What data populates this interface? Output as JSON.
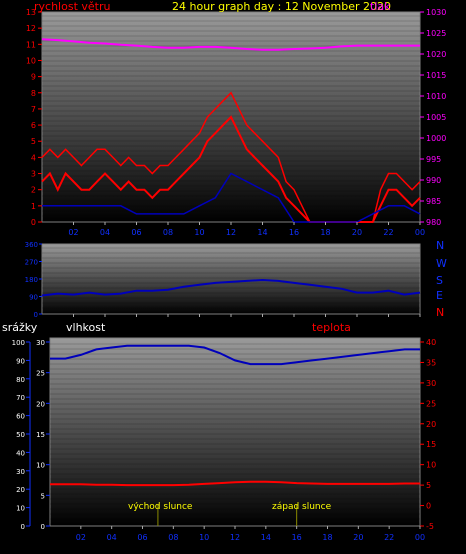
{
  "colors": {
    "background": "#000000",
    "frame": "#7f7f7f",
    "wind": "#ff0000",
    "direction": "#0000bb",
    "pressure": "#ff00ff",
    "humidity": "#0000bb",
    "temperature": "#ff0000",
    "title": "#ffff00",
    "sun_marker": "#8a8a00",
    "axis_blue": "#1030ff"
  },
  "header": {
    "wind_label": "rychlost větru",
    "title": "24 hour graph day : 12 November 2020",
    "pressure_label": "tlak"
  },
  "middle": {
    "compass": [
      "N",
      "W",
      "S",
      "E",
      "N"
    ]
  },
  "bottom_header": {
    "rain_label": "srážky",
    "humidity_label": "vlhkost",
    "temp_label": "teplota"
  },
  "annotations": {
    "sunrise": "východ slunce",
    "sunset": "západ slunce"
  },
  "chart_data": [
    {
      "type": "line",
      "name": "wind-and-pressure",
      "x_ticks": [
        "02",
        "04",
        "06",
        "08",
        "10",
        "12",
        "14",
        "16",
        "18",
        "20",
        "22",
        "00"
      ],
      "y_left_ticks": [
        "0",
        "1",
        "2",
        "3",
        "4",
        "5",
        "6",
        "7",
        "8",
        "9",
        "10",
        "11",
        "12",
        "13"
      ],
      "y_right_ticks": [
        "980",
        "985",
        "990",
        "995",
        "1000",
        "1005",
        "1010",
        "1015",
        "1020",
        "1025",
        "1030"
      ],
      "ylim_left": [
        0,
        13
      ],
      "ylim_right": [
        980,
        1030
      ],
      "xlim": [
        0,
        24
      ],
      "pressure": {
        "x": [
          0,
          1,
          2,
          3,
          4,
          5,
          6,
          7,
          8,
          9,
          10,
          11,
          12,
          13,
          14,
          15,
          16,
          17,
          18,
          19,
          20,
          21,
          22,
          23,
          24
        ],
        "y": [
          1023.5,
          1023.3,
          1023,
          1022.7,
          1022.5,
          1022.2,
          1022,
          1021.7,
          1021.5,
          1021.5,
          1021.7,
          1021.7,
          1021.5,
          1021.2,
          1021,
          1021,
          1021.2,
          1021.3,
          1021.5,
          1021.8,
          1022,
          1022,
          1022,
          1022,
          1022
        ]
      },
      "wind_speed": {
        "x": [
          0,
          0.5,
          1,
          1.5,
          2,
          2.5,
          3,
          3.5,
          4,
          4.5,
          5,
          5.5,
          6,
          6.5,
          7,
          7.5,
          8,
          8.5,
          9,
          9.5,
          10,
          10.5,
          11,
          11.5,
          12,
          12.5,
          13,
          13.5,
          14,
          14.5,
          15,
          15.5,
          16,
          16.5,
          17,
          17.5,
          18,
          18.5,
          19,
          19.5,
          20,
          20.5,
          21,
          21.5,
          22,
          22.5,
          23,
          23.5,
          24
        ],
        "y": [
          2.5,
          3,
          2,
          3,
          2.5,
          2,
          2,
          2.5,
          3,
          2.5,
          2,
          2.5,
          2,
          2,
          1.5,
          2,
          2,
          2.5,
          3,
          3.5,
          4,
          5,
          5.5,
          6,
          6.5,
          5.5,
          4.5,
          4,
          3.5,
          3,
          2.5,
          1.5,
          1,
          0.5,
          0,
          0,
          0,
          0,
          0,
          0,
          0,
          0,
          0,
          1,
          2,
          2,
          1.5,
          1,
          1.5
        ]
      },
      "wind_gust": {
        "x": [
          0,
          0.5,
          1,
          1.5,
          2,
          2.5,
          3,
          3.5,
          4,
          4.5,
          5,
          5.5,
          6,
          6.5,
          7,
          7.5,
          8,
          8.5,
          9,
          9.5,
          10,
          10.5,
          11,
          11.5,
          12,
          12.5,
          13,
          13.5,
          14,
          14.5,
          15,
          15.5,
          16,
          16.5,
          17,
          17.5,
          18,
          18.5,
          19,
          19.5,
          20,
          20.5,
          21,
          21.5,
          22,
          22.5,
          23,
          23.5,
          24
        ],
        "y": [
          4,
          4.5,
          4,
          4.5,
          4,
          3.5,
          4,
          4.5,
          4.5,
          4,
          3.5,
          4,
          3.5,
          3.5,
          3,
          3.5,
          3.5,
          4,
          4.5,
          5,
          5.5,
          6.5,
          7,
          7.5,
          8,
          7,
          6,
          5.5,
          5,
          4.5,
          4,
          2.5,
          2,
          1,
          0,
          0,
          0,
          0,
          0,
          0,
          0,
          0,
          0,
          2,
          3,
          3,
          2.5,
          2,
          2.5
        ]
      },
      "wind_direction_small": {
        "x": [
          0,
          1,
          2,
          3,
          4,
          5,
          6,
          7,
          8,
          9,
          10,
          11,
          12,
          13,
          14,
          15,
          16,
          17,
          18,
          19,
          20,
          21,
          22,
          23,
          24
        ],
        "y": [
          1,
          1,
          1,
          1,
          1,
          1,
          0.5,
          0.5,
          0.5,
          0.5,
          1,
          1.5,
          3,
          2.5,
          2,
          1.5,
          0,
          0,
          0,
          0,
          0,
          0.5,
          1,
          1,
          0.5
        ]
      }
    },
    {
      "type": "line",
      "name": "wind-direction",
      "x_ticks": [
        "02",
        "04",
        "06",
        "08",
        "10",
        "12",
        "14",
        "16",
        "18",
        "20",
        "22",
        "00"
      ],
      "y_ticks": [
        "0",
        "90",
        "180",
        "270",
        "360"
      ],
      "ylim": [
        0,
        360
      ],
      "xlim": [
        0,
        24
      ],
      "direction": {
        "x": [
          0,
          1,
          2,
          3,
          4,
          5,
          6,
          7,
          8,
          9,
          10,
          11,
          12,
          13,
          14,
          15,
          16,
          17,
          18,
          19,
          20,
          21,
          22,
          23,
          24
        ],
        "y": [
          95,
          105,
          100,
          110,
          100,
          105,
          120,
          120,
          125,
          140,
          150,
          160,
          165,
          170,
          175,
          170,
          160,
          150,
          140,
          130,
          110,
          110,
          120,
          100,
          110
        ]
      }
    },
    {
      "type": "line",
      "name": "humidity-temperature",
      "x_ticks": [
        "02",
        "04",
        "06",
        "08",
        "10",
        "12",
        "14",
        "16",
        "18",
        "20",
        "22",
        "00"
      ],
      "y_left_outer_ticks": [
        "0",
        "10",
        "20",
        "30",
        "40",
        "50",
        "60",
        "70",
        "80",
        "90",
        "100"
      ],
      "y_left_inner_ticks": [
        "0",
        "5",
        "10",
        "15",
        "20",
        "25",
        "30"
      ],
      "y_right_ticks": [
        "-5",
        "0",
        "5",
        "10",
        "15",
        "20",
        "25",
        "30",
        "35",
        "40"
      ],
      "ylim_humidity": [
        0,
        100
      ],
      "ylim_temperature": [
        -5,
        40
      ],
      "xlim": [
        0,
        24
      ],
      "humidity": {
        "x": [
          0,
          1,
          2,
          3,
          4,
          5,
          6,
          7,
          8,
          9,
          10,
          11,
          12,
          13,
          14,
          15,
          16,
          17,
          18,
          19,
          20,
          21,
          22,
          23,
          24
        ],
        "y": [
          91,
          91,
          93,
          96,
          97,
          98,
          98,
          98,
          98,
          98,
          97,
          94,
          90,
          88,
          88,
          88,
          89,
          90,
          91,
          92,
          93,
          94,
          95,
          96,
          96
        ]
      },
      "temperature": {
        "x": [
          0,
          1,
          2,
          3,
          4,
          5,
          6,
          7,
          8,
          9,
          10,
          11,
          12,
          13,
          14,
          15,
          16,
          17,
          18,
          19,
          20,
          21,
          22,
          23,
          24
        ],
        "y": [
          5.2,
          5.2,
          5.2,
          5.1,
          5.1,
          5,
          5,
          5,
          5,
          5.1,
          5.3,
          5.5,
          5.7,
          5.8,
          5.8,
          5.7,
          5.5,
          5.4,
          5.3,
          5.3,
          5.3,
          5.3,
          5.3,
          5.4,
          5.4
        ]
      },
      "sunrise_hour": 7,
      "sunset_hour": 16
    }
  ]
}
